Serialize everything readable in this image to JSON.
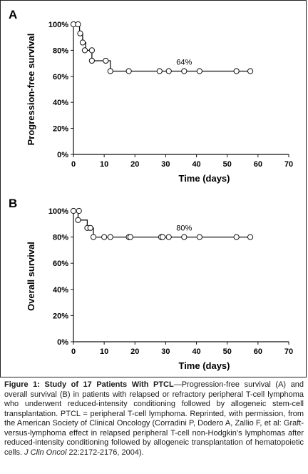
{
  "chart_data": [
    {
      "panel_label": "A",
      "type": "line",
      "xlabel": "Time (days)",
      "ylabel": "Progression-free survival",
      "xlim": [
        0,
        70
      ],
      "ylim": [
        0,
        100
      ],
      "xticks": [
        "0",
        "10",
        "20",
        "30",
        "40",
        "50",
        "60",
        "70"
      ],
      "yticks": [
        "0%",
        "20%",
        "40%",
        "60%",
        "80%",
        "100%"
      ],
      "step": {
        "x": [
          0,
          2,
          2,
          3,
          3,
          4,
          4,
          6,
          6,
          10,
          10,
          12,
          12,
          57.5
        ],
        "y": [
          100,
          100,
          93,
          93,
          86,
          86,
          80,
          80,
          72,
          72,
          72,
          72,
          64,
          64
        ]
      },
      "markers": [
        {
          "x": 0,
          "y": 100
        },
        {
          "x": 1.5,
          "y": 100
        },
        {
          "x": 2.2,
          "y": 93
        },
        {
          "x": 3,
          "y": 86
        },
        {
          "x": 3.7,
          "y": 80
        },
        {
          "x": 6,
          "y": 80
        },
        {
          "x": 6,
          "y": 72
        },
        {
          "x": 10.5,
          "y": 72
        },
        {
          "x": 12,
          "y": 64
        },
        {
          "x": 18,
          "y": 64
        },
        {
          "x": 28,
          "y": 64
        },
        {
          "x": 31,
          "y": 64
        },
        {
          "x": 36,
          "y": 64
        },
        {
          "x": 41,
          "y": 64
        },
        {
          "x": 53,
          "y": 64
        },
        {
          "x": 57.5,
          "y": 64
        }
      ],
      "annotation": {
        "text": "64%",
        "x": 36,
        "y": 69
      }
    },
    {
      "panel_label": "B",
      "type": "line",
      "xlabel": "Time (days)",
      "ylabel": "Overall survival",
      "xlim": [
        0,
        70
      ],
      "ylim": [
        0,
        100
      ],
      "xticks": [
        "0",
        "10",
        "20",
        "30",
        "40",
        "50",
        "60",
        "70"
      ],
      "yticks": [
        "0%",
        "20%",
        "40%",
        "60%",
        "80%",
        "100%"
      ],
      "step": {
        "x": [
          0,
          1.5,
          1.5,
          4.5,
          4.5,
          6.5,
          6.5,
          57.5
        ],
        "y": [
          100,
          100,
          93,
          93,
          87,
          87,
          80,
          80
        ]
      },
      "markers": [
        {
          "x": 0,
          "y": 100
        },
        {
          "x": 1.8,
          "y": 100
        },
        {
          "x": 1.5,
          "y": 93
        },
        {
          "x": 4.5,
          "y": 87
        },
        {
          "x": 5.5,
          "y": 87
        },
        {
          "x": 6.5,
          "y": 80
        },
        {
          "x": 10,
          "y": 80
        },
        {
          "x": 12,
          "y": 80
        },
        {
          "x": 18,
          "y": 80
        },
        {
          "x": 18.5,
          "y": 80
        },
        {
          "x": 28.5,
          "y": 80
        },
        {
          "x": 29,
          "y": 80
        },
        {
          "x": 31,
          "y": 80
        },
        {
          "x": 36,
          "y": 80
        },
        {
          "x": 41,
          "y": 80
        },
        {
          "x": 53,
          "y": 80
        },
        {
          "x": 57.5,
          "y": 80
        }
      ],
      "annotation": {
        "text": "80%",
        "x": 36,
        "y": 85
      }
    }
  ],
  "caption": {
    "title": "Figure 1: Study of 17 Patients With PTCL",
    "body": "—Progression-free survival (A) and overall survival (B) in patients with relapsed or refractory peripheral T-cell lymphoma who underwent reduced-intensity conditioning followed by allogeneic stem-cell transplantation. PTCL = peripheral T-cell lymphoma. Reprinted, with permission, from the American Society of Clinical Oncology (Corradini P, Dodero A, Zallio F, et al: Graft-versus-lymphoma effect in relapsed peripheral T-cell non-Hodgkin’s lymphomas after reduced-intensity conditioning followed by allogeneic transplantation of hematopoietic cells. ",
    "journal": "J Clin Oncol",
    "citation_end": " 22:2172-2176, 2004)."
  }
}
